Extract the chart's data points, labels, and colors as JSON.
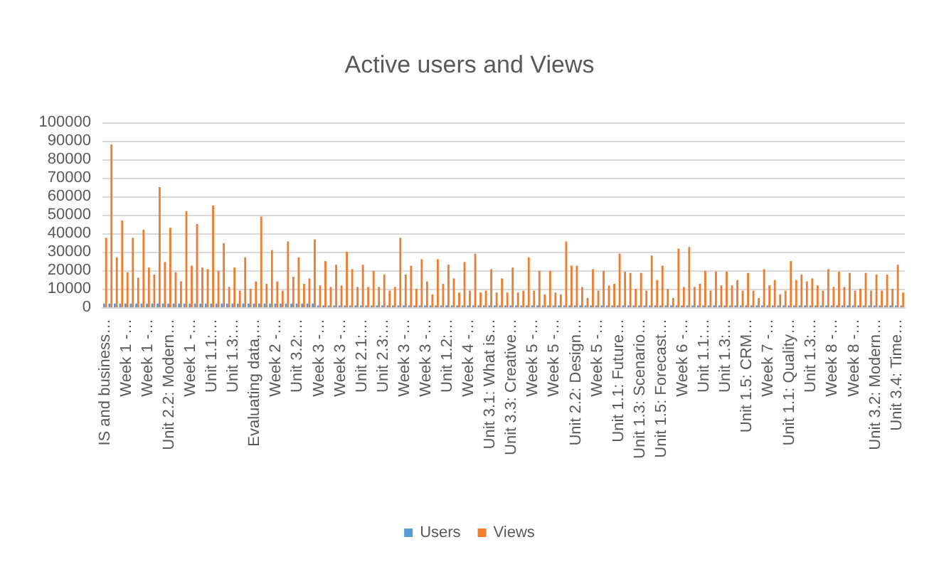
{
  "chart_data": {
    "type": "bar",
    "title": "Active users and Views",
    "categories": [
      "IS and business…",
      null,
      null,
      null,
      "Week 1 -…",
      null,
      null,
      null,
      "Week 1 -…",
      null,
      null,
      null,
      "Unit 2.2: Modern…",
      null,
      null,
      null,
      "Week 1 -…",
      null,
      null,
      null,
      "Unit 1.1:…",
      null,
      null,
      null,
      "Unit 1.3:…",
      null,
      null,
      null,
      "Evaluating data,…",
      null,
      null,
      null,
      "Week 2 -…",
      null,
      null,
      null,
      "Unit 3.2:…",
      null,
      null,
      null,
      "Week 3 -…",
      null,
      null,
      null,
      "Week 3 -…",
      null,
      null,
      null,
      "Unit 2.1:…",
      null,
      null,
      null,
      "Unit 2.3:…",
      null,
      null,
      null,
      "Week 3 -…",
      null,
      null,
      null,
      "Week 3 -…",
      null,
      null,
      null,
      "Unit 1.2:…",
      null,
      null,
      null,
      "Week 4 -…",
      null,
      null,
      null,
      "Unit 3.1: What is…",
      null,
      null,
      null,
      "Unit 3.3: Creative…",
      null,
      null,
      null,
      "Week 5 -…",
      null,
      null,
      null,
      "Week 5 -…",
      null,
      null,
      null,
      "Unit 2.2: Design…",
      null,
      null,
      null,
      "Week 5 -…",
      null,
      null,
      null,
      "Unit 1.1: Future…",
      null,
      null,
      null,
      "Unit 1.3: Scenario…",
      null,
      null,
      null,
      "Unit 1.5: Forecast…",
      null,
      null,
      null,
      "Week 6 -…",
      null,
      null,
      null,
      "Unit 1.1:…",
      null,
      null,
      null,
      "Unit 1.3:…",
      null,
      null,
      null,
      "Unit 1.5: CRM…",
      null,
      null,
      null,
      "Week 7 -…",
      null,
      null,
      null,
      "Unit 1.1: Quality…",
      null,
      null,
      null,
      "Unit 1.3:…",
      null,
      null,
      null,
      "Week 8 -…",
      null,
      null,
      null,
      "Week 8 -…",
      null,
      null,
      null,
      "Unit 3.2: Modern…",
      null,
      null,
      null,
      "Unit 3.4: Time…",
      null
    ],
    "series": [
      {
        "name": "Users",
        "color": "#5b9bd5",
        "values": [
          2000,
          2000,
          2000,
          2000,
          2000,
          2000,
          2000,
          2000,
          2000,
          2000,
          2000,
          2000,
          2000,
          2000,
          2000,
          2000,
          2000,
          2000,
          2000,
          2000,
          2000,
          2000,
          2000,
          2000,
          2000,
          2000,
          2000,
          2000,
          2000,
          2000,
          2000,
          2000,
          2000,
          2000,
          2000,
          2000,
          2000,
          2000,
          2000,
          2000,
          1000,
          1000,
          1000,
          1000,
          1000,
          1000,
          1000,
          1000,
          1000,
          1000,
          1000,
          1000,
          1000,
          1000,
          1000,
          1000,
          1000,
          1000,
          1000,
          1000,
          1000,
          1000,
          1000,
          1000,
          1000,
          1000,
          1000,
          1000,
          1000,
          1000,
          1000,
          1000,
          1000,
          1000,
          1000,
          1000,
          1000,
          1000,
          1000,
          1000,
          1000,
          1000,
          1000,
          1000,
          1000,
          1000,
          1000,
          1000,
          1000,
          1000,
          1000,
          1000,
          1000,
          1000,
          1000,
          1000,
          1000,
          1000,
          1000,
          1000,
          1000,
          1000,
          1000,
          1000,
          1000,
          1000,
          1000,
          1000,
          1000,
          1000,
          1000,
          1000,
          1000,
          1000,
          1000,
          1000,
          1000,
          1000,
          1000,
          1000,
          1000,
          1000,
          1000,
          1000,
          1000,
          1000,
          1000,
          1000,
          1000,
          1000,
          1000,
          1000,
          1000,
          1000,
          1000,
          1000,
          1000,
          1000,
          1000,
          1000,
          1000,
          1000,
          1000,
          1000,
          1000,
          1000,
          1000,
          1000,
          1000,
          1000
        ]
      },
      {
        "name": "Views",
        "color": "#ed7d31",
        "values": [
          37600,
          88000,
          27000,
          47000,
          19000,
          37600,
          16000,
          42000,
          21500,
          17700,
          65000,
          24500,
          43000,
          19000,
          14000,
          52000,
          22500,
          45000,
          21500,
          20600,
          55000,
          19700,
          34700,
          11000,
          21500,
          9000,
          27000,
          10000,
          14000,
          49000,
          12700,
          31000,
          14000,
          9000,
          35600,
          16500,
          27000,
          12700,
          15600,
          36700,
          11800,
          25000,
          11000,
          23000,
          11800,
          30000,
          20600,
          11000,
          23000,
          11000,
          19700,
          11000,
          17700,
          9000,
          11000,
          37600,
          17700,
          22500,
          10000,
          26000,
          14000,
          7000,
          26000,
          12700,
          23000,
          15600,
          8000,
          24500,
          9000,
          29000,
          8000,
          9000,
          20600,
          8000,
          15600,
          8000,
          21500,
          8000,
          9000,
          27000,
          9000,
          19700,
          7000,
          19700,
          8000,
          7000,
          35600,
          22500,
          22500,
          11000,
          5000,
          20600,
          9000,
          19700,
          11800,
          12700,
          29000,
          19300,
          18600,
          10000,
          18600,
          9000,
          28000,
          14700,
          22500,
          10000,
          5000,
          31700,
          11000,
          32600,
          11000,
          12700,
          19700,
          9000,
          19300,
          11800,
          19300,
          11800,
          14700,
          9000,
          18600,
          9000,
          5000,
          20600,
          11800,
          14700,
          7000,
          9000,
          25000,
          14700,
          17700,
          14000,
          15600,
          11800,
          9000,
          20600,
          11000,
          19300,
          11000,
          18600,
          9000,
          10000,
          18600,
          9000,
          17700,
          9000,
          17700,
          10000,
          23000,
          8000
        ]
      }
    ],
    "ylim": [
      0,
      100000
    ],
    "yticks": [
      0,
      10000,
      20000,
      30000,
      40000,
      50000,
      60000,
      70000,
      80000,
      90000,
      100000
    ],
    "grid": "y",
    "legend": "bottom"
  }
}
